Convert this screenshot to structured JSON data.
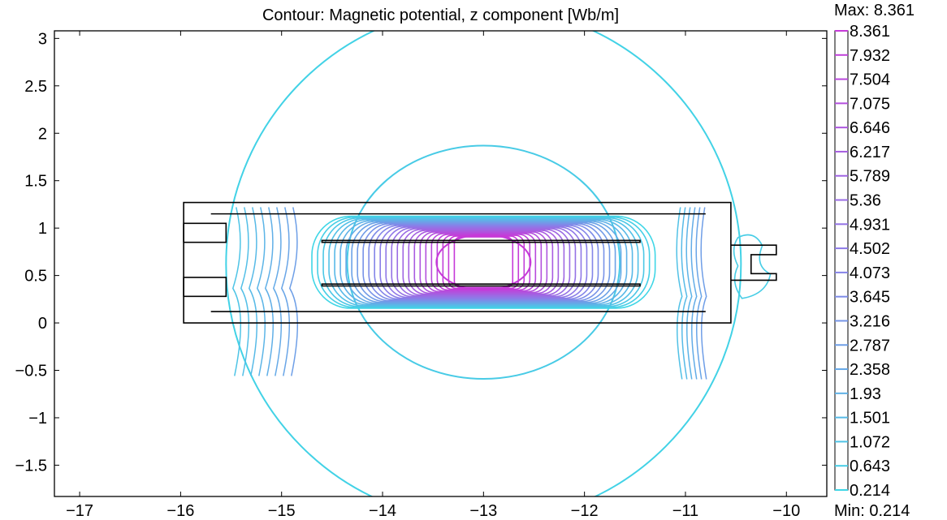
{
  "chart_data": {
    "type": "contour",
    "title": "Contour: Magnetic potential, z component [Wb/m]",
    "xlim": [
      -17.25,
      -9.6
    ],
    "ylim": [
      -1.83,
      3.08
    ],
    "x_ticks": [
      -17,
      -16,
      -15,
      -14,
      -13,
      -12,
      -11,
      -10
    ],
    "x_tick_labels": [
      "−17",
      "−16",
      "−15",
      "−14",
      "−13",
      "−12",
      "−11",
      "−10"
    ],
    "y_ticks": [
      -1.5,
      -1,
      -0.5,
      0,
      0.5,
      1,
      1.5,
      2,
      2.5,
      3
    ],
    "y_tick_labels": [
      "−1.5",
      "−1",
      "−0.5",
      "0",
      "0.5",
      "1",
      "1.5",
      "2",
      "2.5",
      "3"
    ],
    "colorbar": {
      "max_label": "Max: 8.361",
      "min_label": "Min: 0.214",
      "max": 8.361,
      "min": 0.214,
      "levels": [
        "8.361",
        "7.932",
        "7.504",
        "7.075",
        "6.646",
        "6.217",
        "5.789",
        "5.36",
        "4.931",
        "4.502",
        "4.073",
        "3.645",
        "3.216",
        "2.787",
        "2.358",
        "1.93",
        "1.501",
        "1.072",
        "0.643",
        "0.214"
      ],
      "color_low": "#3fd6e6",
      "color_mid": "#8a7ee8",
      "color_high": "#c63ad8"
    },
    "outer_circle": {
      "cx": -13.0,
      "cy": 0.62,
      "rx": 2.55,
      "ry": 2.72
    },
    "inner_circle": {
      "cx": -13.0,
      "cy": 0.64,
      "rx": 1.35,
      "ry": 1.23
    },
    "magnet": {
      "outer_rect": {
        "x0": -15.97,
        "x1": -10.55,
        "y0": 0.0,
        "y1": 1.27
      },
      "core": {
        "x0": -14.65,
        "x1": -11.25,
        "y0": 0.15,
        "y1": 1.12
      },
      "bars": [
        {
          "x0": -14.6,
          "x1": -11.45,
          "y0": 0.85,
          "y1": 0.87
        },
        {
          "x0": -14.6,
          "x1": -11.45,
          "y0": 0.39,
          "y1": 0.41
        }
      ]
    }
  }
}
